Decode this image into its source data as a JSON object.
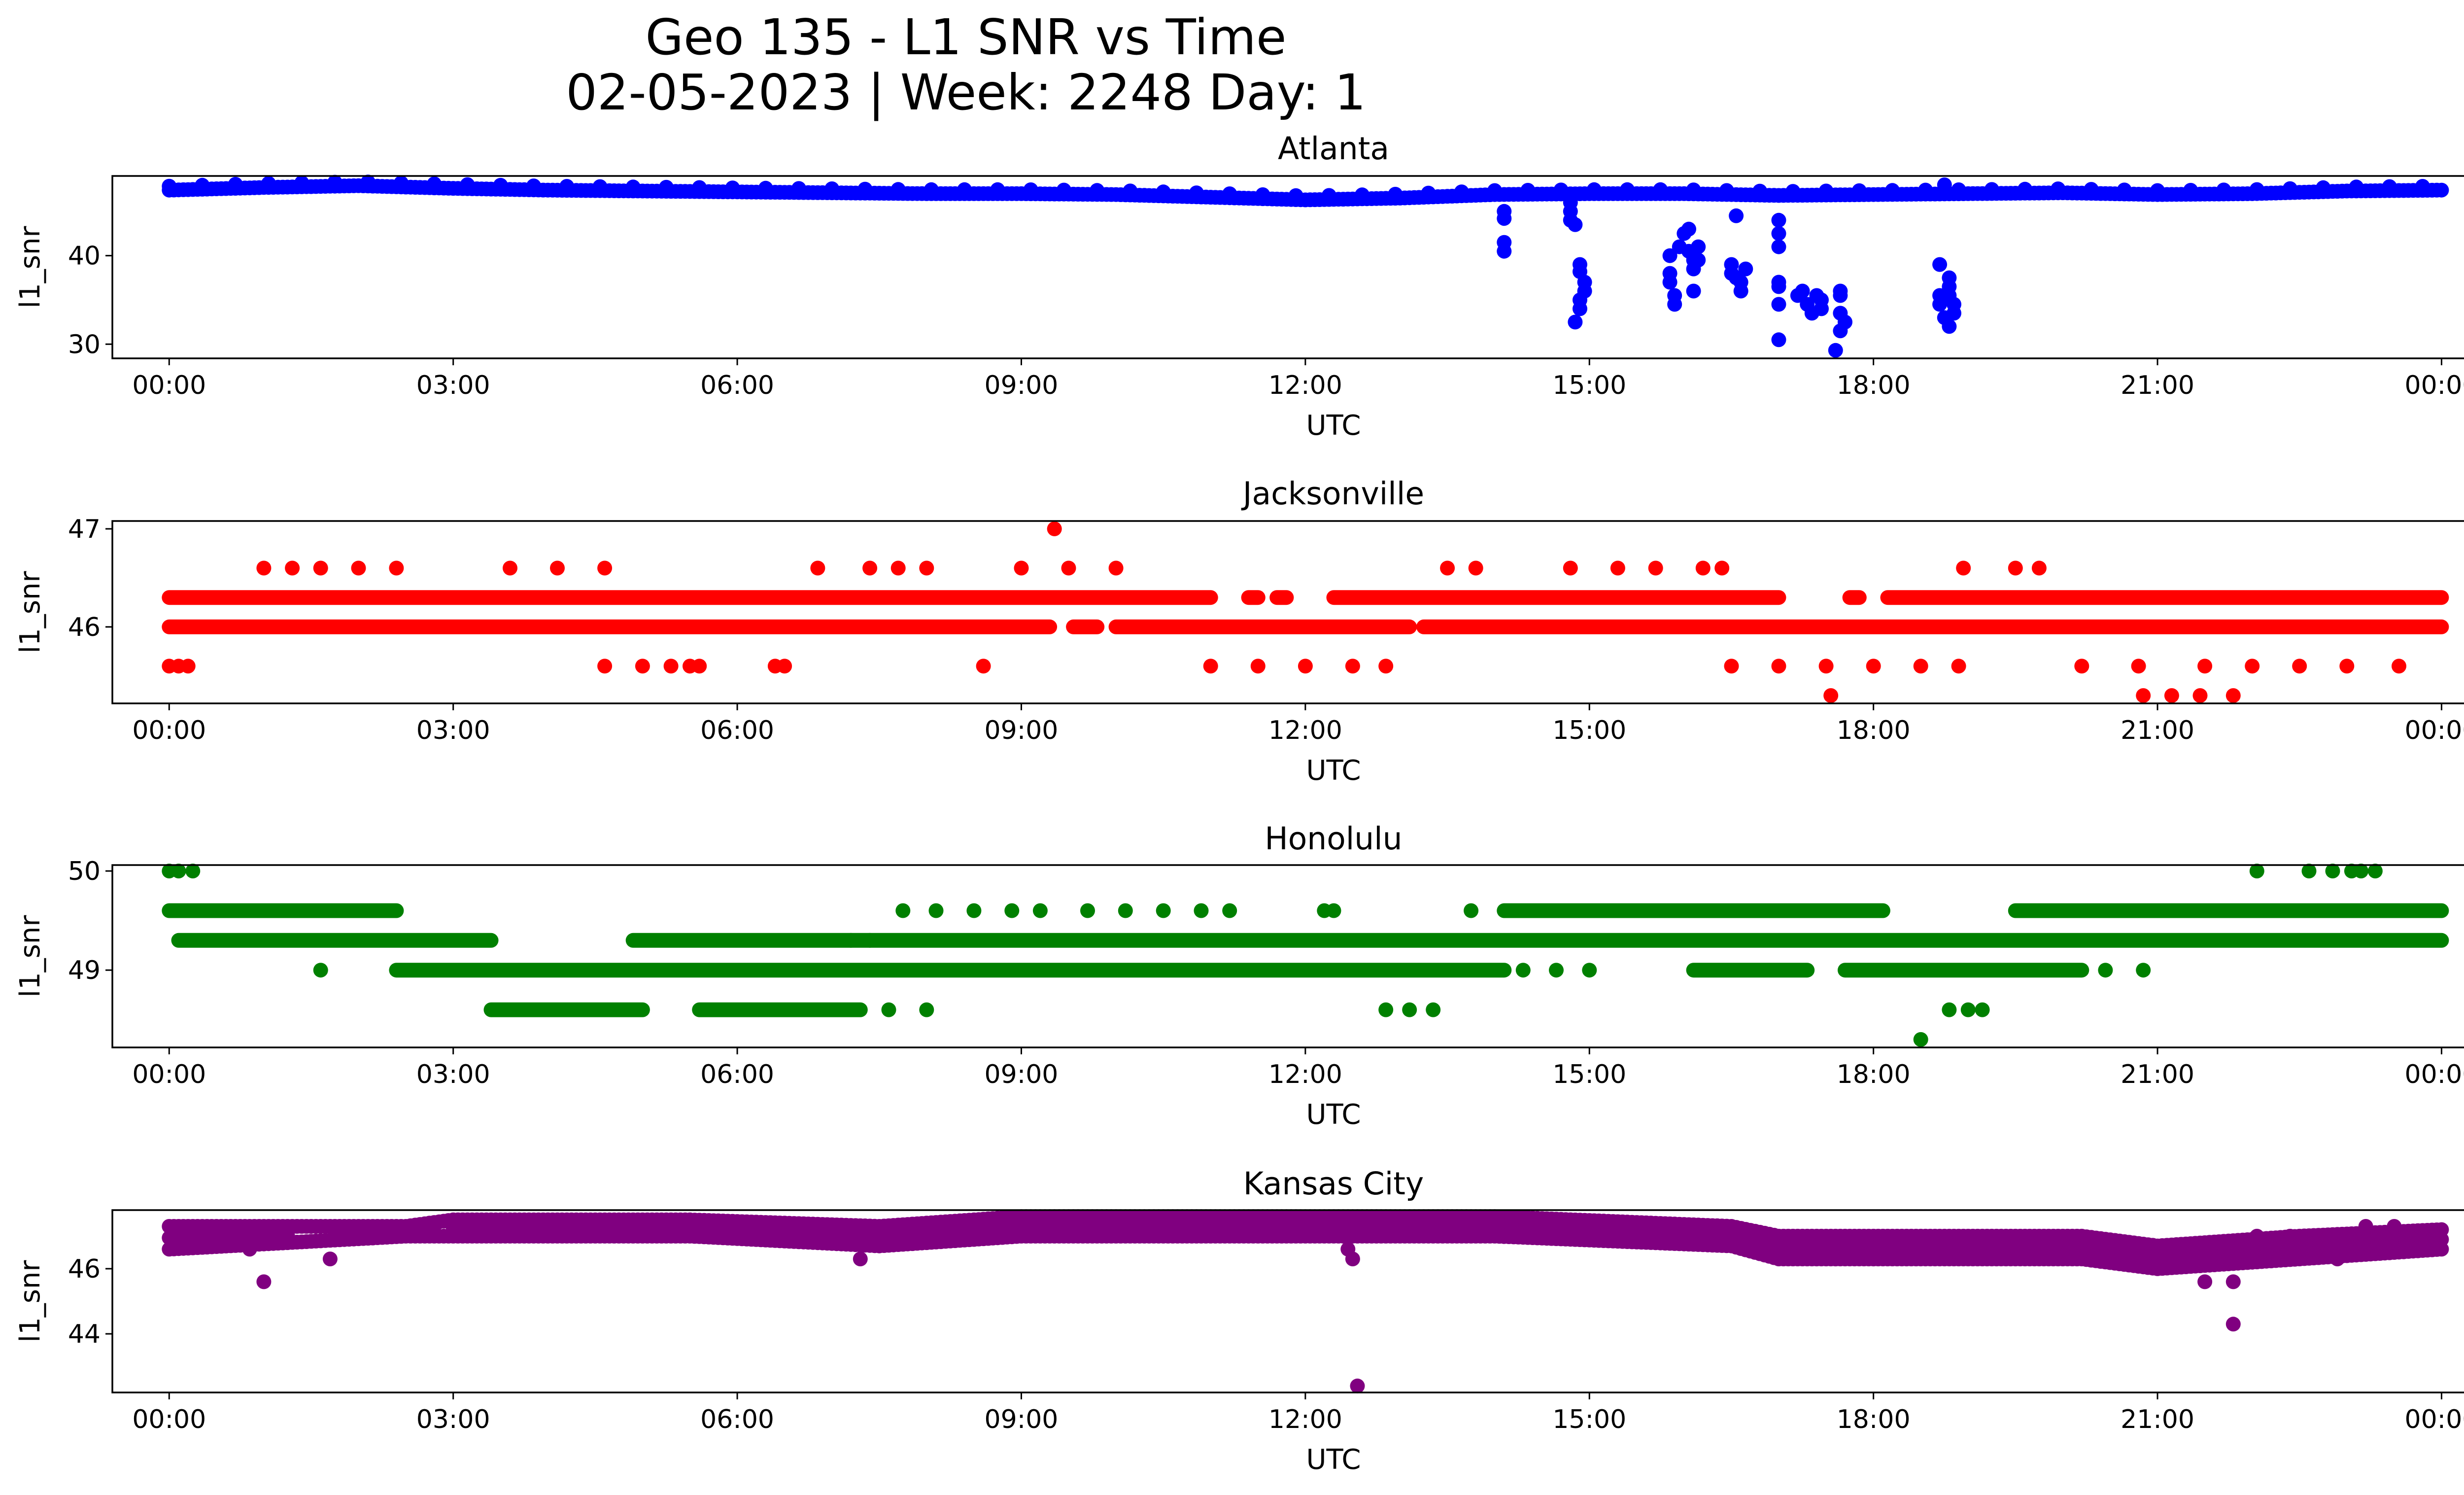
{
  "title_line1": "Geo 135 - L1 SNR vs Time",
  "title_line2": "02-05-2023 | Week: 2248 Day: 1",
  "chart_data": [
    {
      "type": "scatter",
      "title": "Atlanta",
      "xlabel": "UTC",
      "ylabel": "l1_snr",
      "color": "#0000ff",
      "x_ticks": [
        "00:00",
        "03:00",
        "06:00",
        "09:00",
        "12:00",
        "15:00",
        "18:00",
        "21:00",
        "00:00"
      ],
      "y_ticks": [
        30,
        40
      ],
      "xlim_hours": [
        -0.6,
        25.2
      ],
      "ylim": [
        28.4,
        49.0
      ],
      "baseline": [
        [
          0,
          47.4
        ],
        [
          1,
          47.7
        ],
        [
          2,
          47.9
        ],
        [
          3,
          47.6
        ],
        [
          4,
          47.4
        ],
        [
          5,
          47.3
        ],
        [
          6,
          47.2
        ],
        [
          7,
          47.1
        ],
        [
          8,
          47.0
        ],
        [
          9,
          47.0
        ],
        [
          10,
          46.9
        ],
        [
          11,
          46.6
        ],
        [
          12,
          46.3
        ],
        [
          13,
          46.5
        ],
        [
          14,
          46.9
        ],
        [
          15,
          47.0
        ],
        [
          16,
          47.0
        ],
        [
          17,
          46.8
        ],
        [
          18,
          46.9
        ],
        [
          19,
          47.0
        ],
        [
          20,
          47.1
        ],
        [
          21,
          46.9
        ],
        [
          22,
          47.0
        ],
        [
          23,
          47.3
        ],
        [
          24,
          47.4
        ]
      ],
      "outliers": [
        [
          14.1,
          45.0
        ],
        [
          14.1,
          44.2
        ],
        [
          14.1,
          41.5
        ],
        [
          14.1,
          40.5
        ],
        [
          14.8,
          46.0
        ],
        [
          14.8,
          45.0
        ],
        [
          14.8,
          44.0
        ],
        [
          14.85,
          43.5
        ],
        [
          14.9,
          39.0
        ],
        [
          14.9,
          38.2
        ],
        [
          14.95,
          37.0
        ],
        [
          14.95,
          36.0
        ],
        [
          14.9,
          35.0
        ],
        [
          14.9,
          34.0
        ],
        [
          14.85,
          32.5
        ],
        [
          15.85,
          40.0
        ],
        [
          15.85,
          38.0
        ],
        [
          15.85,
          37.0
        ],
        [
          15.9,
          35.5
        ],
        [
          15.9,
          34.5
        ],
        [
          15.95,
          41.0
        ],
        [
          16.0,
          42.5
        ],
        [
          16.05,
          43.0
        ],
        [
          16.05,
          40.5
        ],
        [
          16.1,
          39.5
        ],
        [
          16.1,
          38.5
        ],
        [
          16.1,
          36.0
        ],
        [
          16.15,
          41.0
        ],
        [
          16.15,
          39.5
        ],
        [
          16.55,
          44.5
        ],
        [
          16.5,
          39.0
        ],
        [
          16.5,
          38.0
        ],
        [
          16.55,
          37.5
        ],
        [
          16.6,
          37.0
        ],
        [
          16.6,
          36.0
        ],
        [
          16.65,
          38.5
        ],
        [
          17.0,
          44.0
        ],
        [
          17.0,
          42.5
        ],
        [
          17.0,
          41.0
        ],
        [
          17.0,
          37.0
        ],
        [
          17.0,
          36.5
        ],
        [
          17.0,
          34.5
        ],
        [
          17.0,
          30.5
        ],
        [
          17.2,
          35.5
        ],
        [
          17.25,
          36.0
        ],
        [
          17.3,
          34.5
        ],
        [
          17.35,
          33.5
        ],
        [
          17.4,
          35.5
        ],
        [
          17.45,
          35.0
        ],
        [
          17.45,
          34.0
        ],
        [
          17.65,
          36.0
        ],
        [
          17.65,
          35.5
        ],
        [
          17.65,
          33.5
        ],
        [
          17.7,
          32.5
        ],
        [
          17.65,
          31.5
        ],
        [
          17.6,
          29.3
        ],
        [
          18.7,
          39.0
        ],
        [
          18.7,
          35.5
        ],
        [
          18.7,
          34.5
        ],
        [
          18.75,
          33.0
        ],
        [
          18.8,
          37.5
        ],
        [
          18.8,
          36.5
        ],
        [
          18.8,
          35.5
        ],
        [
          18.85,
          34.5
        ],
        [
          18.85,
          33.5
        ],
        [
          18.8,
          32.0
        ],
        [
          18.75,
          48.0
        ]
      ]
    },
    {
      "type": "scatter",
      "title": "Jacksonville",
      "xlabel": "UTC",
      "ylabel": "l1_snr",
      "color": "#ff0000",
      "x_ticks": [
        "00:00",
        "03:00",
        "06:00",
        "09:00",
        "12:00",
        "15:00",
        "18:00",
        "21:00",
        "00:00"
      ],
      "y_ticks": [
        46,
        47
      ],
      "xlim_hours": [
        -0.6,
        25.2
      ],
      "ylim": [
        45.22,
        47.08
      ],
      "levels": [
        {
          "y": 46.3,
          "segments": [
            [
              0,
              11.0
            ],
            [
              11.4,
              11.5
            ],
            [
              11.7,
              11.8
            ],
            [
              12.3,
              17.0
            ],
            [
              17.75,
              17.85
            ],
            [
              18.15,
              24.0
            ]
          ]
        },
        {
          "y": 46.0,
          "segments": [
            [
              0,
              9.3
            ],
            [
              9.55,
              9.8
            ],
            [
              10.0,
              13.1
            ],
            [
              13.25,
              24.0
            ]
          ]
        }
      ],
      "points": [
        [
          0.0,
          45.6
        ],
        [
          0.1,
          45.6
        ],
        [
          0.2,
          45.6
        ],
        [
          4.6,
          45.6
        ],
        [
          5.0,
          45.6
        ],
        [
          5.3,
          45.6
        ],
        [
          5.5,
          45.6
        ],
        [
          5.6,
          45.6
        ],
        [
          6.4,
          45.6
        ],
        [
          6.5,
          45.6
        ],
        [
          8.6,
          45.6
        ],
        [
          11.0,
          45.6
        ],
        [
          11.5,
          45.6
        ],
        [
          12.0,
          45.6
        ],
        [
          12.5,
          45.6
        ],
        [
          12.85,
          45.6
        ],
        [
          16.5,
          45.6
        ],
        [
          17.0,
          45.6
        ],
        [
          17.5,
          45.6
        ],
        [
          18.0,
          45.6
        ],
        [
          18.5,
          45.6
        ],
        [
          18.9,
          45.6
        ],
        [
          20.2,
          45.6
        ],
        [
          20.8,
          45.6
        ],
        [
          21.5,
          45.6
        ],
        [
          22.0,
          45.6
        ],
        [
          22.5,
          45.6
        ],
        [
          23.0,
          45.6
        ],
        [
          23.55,
          45.6
        ],
        [
          17.55,
          45.3
        ],
        [
          20.85,
          45.3
        ],
        [
          21.15,
          45.3
        ],
        [
          21.45,
          45.3
        ],
        [
          21.8,
          45.3
        ],
        [
          1.0,
          46.6
        ],
        [
          1.3,
          46.6
        ],
        [
          1.6,
          46.6
        ],
        [
          2.0,
          46.6
        ],
        [
          2.4,
          46.6
        ],
        [
          3.6,
          46.6
        ],
        [
          4.1,
          46.6
        ],
        [
          4.6,
          46.6
        ],
        [
          6.85,
          46.6
        ],
        [
          7.4,
          46.6
        ],
        [
          7.7,
          46.6
        ],
        [
          8.0,
          46.6
        ],
        [
          9.0,
          46.6
        ],
        [
          9.5,
          46.6
        ],
        [
          10.0,
          46.6
        ],
        [
          13.5,
          46.6
        ],
        [
          13.8,
          46.6
        ],
        [
          14.8,
          46.6
        ],
        [
          15.3,
          46.6
        ],
        [
          15.7,
          46.6
        ],
        [
          16.2,
          46.6
        ],
        [
          16.4,
          46.6
        ],
        [
          18.95,
          46.6
        ],
        [
          19.5,
          46.6
        ],
        [
          19.75,
          46.6
        ],
        [
          9.35,
          47.0
        ]
      ]
    },
    {
      "type": "scatter",
      "title": "Honolulu",
      "xlabel": "UTC",
      "ylabel": "l1_snr",
      "color": "#008000",
      "x_ticks": [
        "00:00",
        "03:00",
        "06:00",
        "09:00",
        "12:00",
        "15:00",
        "18:00",
        "21:00",
        "00:00"
      ],
      "y_ticks": [
        49,
        50
      ],
      "xlim_hours": [
        -0.6,
        25.2
      ],
      "ylim": [
        48.22,
        50.06
      ],
      "levels": [
        {
          "y": 49.6,
          "segments": [
            [
              0,
              2.4
            ],
            [
              14.1,
              18.1
            ],
            [
              19.5,
              24.0
            ]
          ]
        },
        {
          "y": 49.3,
          "segments": [
            [
              0.1,
              3.4
            ],
            [
              4.9,
              24.0
            ]
          ]
        },
        {
          "y": 49.0,
          "segments": [
            [
              2.4,
              14.1
            ],
            [
              16.1,
              17.3
            ],
            [
              17.7,
              20.2
            ]
          ]
        },
        {
          "y": 48.6,
          "segments": [
            [
              3.4,
              5.0
            ],
            [
              5.6,
              7.3
            ]
          ]
        }
      ],
      "points": [
        [
          0.0,
          50.0
        ],
        [
          0.1,
          50.0
        ],
        [
          0.25,
          50.0
        ],
        [
          22.05,
          50.0
        ],
        [
          22.6,
          50.0
        ],
        [
          22.85,
          50.0
        ],
        [
          23.05,
          50.0
        ],
        [
          23.15,
          50.0
        ],
        [
          23.3,
          50.0
        ],
        [
          1.6,
          49.0
        ],
        [
          14.3,
          49.0
        ],
        [
          14.65,
          49.0
        ],
        [
          20.45,
          49.0
        ],
        [
          20.85,
          49.0
        ],
        [
          15.0,
          49.0
        ],
        [
          7.75,
          49.6
        ],
        [
          8.1,
          49.6
        ],
        [
          8.5,
          49.6
        ],
        [
          8.9,
          49.6
        ],
        [
          9.2,
          49.6
        ],
        [
          9.7,
          49.6
        ],
        [
          10.1,
          49.6
        ],
        [
          10.5,
          49.6
        ],
        [
          10.9,
          49.6
        ],
        [
          11.2,
          49.6
        ],
        [
          12.2,
          49.6
        ],
        [
          12.3,
          49.6
        ],
        [
          13.75,
          49.6
        ],
        [
          7.2,
          49.3
        ],
        [
          7.4,
          49.3
        ],
        [
          7.6,
          48.6
        ],
        [
          8.0,
          48.6
        ],
        [
          12.85,
          48.6
        ],
        [
          13.1,
          48.6
        ],
        [
          13.35,
          48.6
        ],
        [
          18.8,
          48.6
        ],
        [
          19.0,
          48.6
        ],
        [
          19.15,
          48.6
        ],
        [
          18.5,
          48.3
        ]
      ]
    },
    {
      "type": "scatter",
      "title": "Kansas City",
      "xlabel": "UTC",
      "ylabel": "l1_snr",
      "color": "#800080",
      "x_ticks": [
        "00:00",
        "03:00",
        "06:00",
        "09:00",
        "12:00",
        "15:00",
        "18:00",
        "21:00",
        "00:00"
      ],
      "y_ticks": [
        44,
        46
      ],
      "xlim_hours": [
        -0.6,
        25.2
      ],
      "ylim": [
        42.2,
        47.8
      ],
      "band": {
        "lo": [
          [
            0,
            46.6
          ],
          [
            2.5,
            47.0
          ],
          [
            3.0,
            47.0
          ],
          [
            5.5,
            47.0
          ],
          [
            7.5,
            46.7
          ],
          [
            9.0,
            47.0
          ],
          [
            11.0,
            47.0
          ],
          [
            14.0,
            47.0
          ],
          [
            16.5,
            46.7
          ],
          [
            17.0,
            46.3
          ],
          [
            20.2,
            46.3
          ],
          [
            21.0,
            46.0
          ],
          [
            22.5,
            46.3
          ],
          [
            24.0,
            46.6
          ]
        ],
        "hi": [
          [
            0,
            47.3
          ],
          [
            2.5,
            47.3
          ],
          [
            3.0,
            47.5
          ],
          [
            5.5,
            47.5
          ],
          [
            7.5,
            47.3
          ],
          [
            9.0,
            47.6
          ],
          [
            11.0,
            47.6
          ],
          [
            14.0,
            47.6
          ],
          [
            16.5,
            47.3
          ],
          [
            17.0,
            47.0
          ],
          [
            20.2,
            47.0
          ],
          [
            21.0,
            46.7
          ],
          [
            22.5,
            47.0
          ],
          [
            24.0,
            47.2
          ]
        ]
      },
      "points": [
        [
          1.0,
          45.6
        ],
        [
          0.85,
          46.6
        ],
        [
          1.7,
          46.3
        ],
        [
          7.3,
          46.3
        ],
        [
          12.45,
          46.6
        ],
        [
          12.5,
          46.3
        ],
        [
          12.55,
          42.4
        ],
        [
          12.8,
          47.3
        ],
        [
          17.6,
          46.3
        ],
        [
          18.0,
          46.3
        ],
        [
          21.5,
          45.6
        ],
        [
          21.8,
          45.6
        ],
        [
          21.8,
          44.3
        ],
        [
          22.05,
          47.0
        ],
        [
          22.4,
          47.0
        ],
        [
          22.9,
          46.3
        ],
        [
          23.2,
          47.3
        ],
        [
          23.5,
          47.3
        ]
      ]
    }
  ]
}
